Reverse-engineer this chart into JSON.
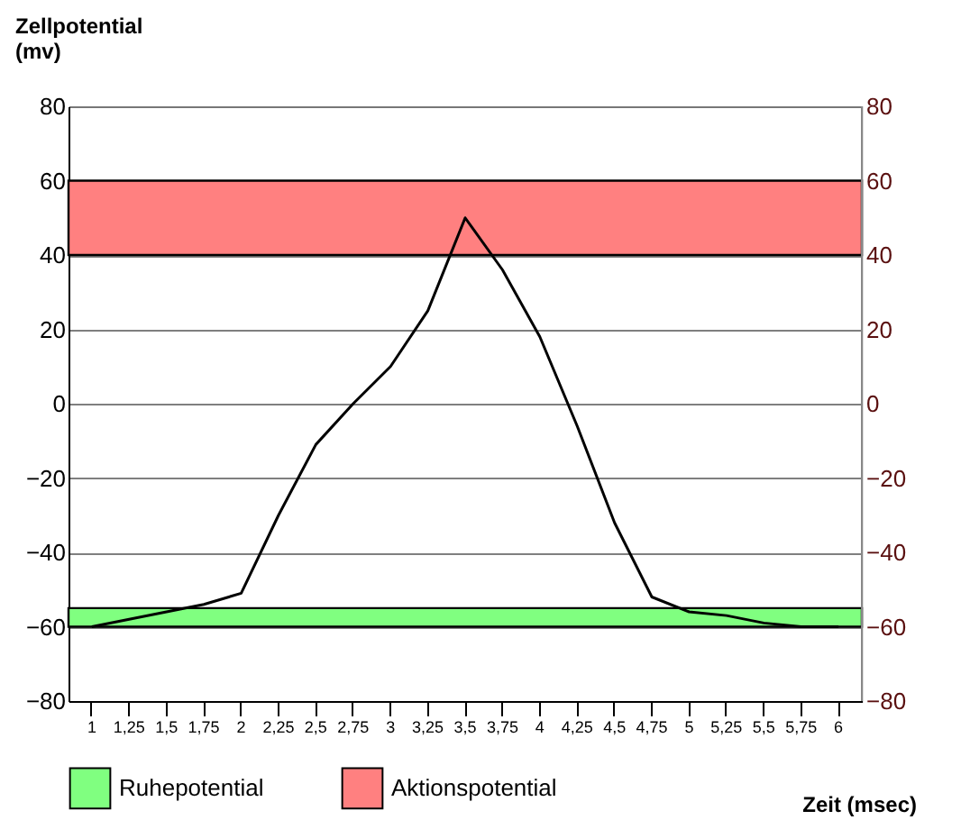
{
  "chart_data": {
    "type": "line",
    "ylabel": "Zellpotential (mv)",
    "xlabel": "Zeit (msec)",
    "categories": [
      "1",
      "1,25",
      "1,5",
      "1,75",
      "2",
      "2,25",
      "2,5",
      "2,75",
      "3",
      "3,25",
      "3,5",
      "3,75",
      "4",
      "4,25",
      "4,5",
      "4,75",
      "5",
      "5,25",
      "5,5",
      "5,75",
      "6"
    ],
    "series": [
      {
        "color": "#000000",
        "values": [
          -60,
          -58,
          -56,
          -54,
          -51,
          -30,
          -11,
          0,
          10,
          25,
          50,
          36,
          18,
          -6,
          -32,
          -52,
          -56,
          -57,
          -59,
          -60,
          -60
        ]
      }
    ],
    "ylim": [
      -80,
      80
    ],
    "yticks": [
      -80,
      -60,
      -40,
      -20,
      0,
      20,
      40,
      60,
      80
    ],
    "y2lim": [
      -80,
      80
    ],
    "y2ticks": [
      -80,
      -60,
      -40,
      -20,
      0,
      20,
      40,
      60,
      80
    ],
    "bands": [
      {
        "axis": "y",
        "from": -60,
        "to": -55,
        "label": "Ruhepotential",
        "color": "#80ff80"
      },
      {
        "axis": "y",
        "from": 40,
        "to": 60,
        "label": "Aktionspotential",
        "color": "#ff8080"
      }
    ],
    "grid": "y",
    "legend": "bottom",
    "marker": "none",
    "line_style": "solid"
  }
}
